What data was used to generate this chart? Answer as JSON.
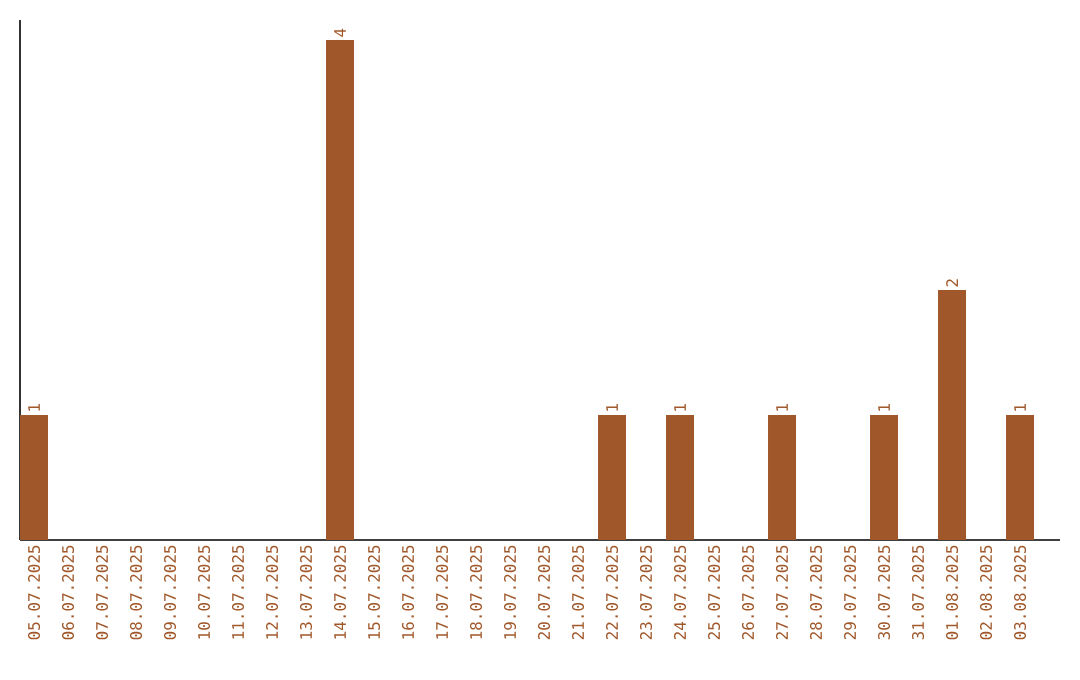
{
  "chart_data": {
    "type": "bar",
    "categories": [
      "05.07.2025",
      "06.07.2025",
      "07.07.2025",
      "08.07.2025",
      "09.07.2025",
      "10.07.2025",
      "11.07.2025",
      "12.07.2025",
      "13.07.2025",
      "14.07.2025",
      "15.07.2025",
      "16.07.2025",
      "17.07.2025",
      "18.07.2025",
      "19.07.2025",
      "20.07.2025",
      "21.07.2025",
      "22.07.2025",
      "23.07.2025",
      "24.07.2025",
      "25.07.2025",
      "26.07.2025",
      "27.07.2025",
      "28.07.2025",
      "29.07.2025",
      "30.07.2025",
      "31.07.2025",
      "01.08.2025",
      "02.08.2025",
      "03.08.2025"
    ],
    "values": [
      1,
      0,
      0,
      0,
      0,
      0,
      0,
      0,
      0,
      4,
      0,
      0,
      0,
      0,
      0,
      0,
      0,
      1,
      0,
      1,
      0,
      0,
      1,
      0,
      0,
      1,
      0,
      2,
      0,
      1
    ],
    "value_labels": [
      "1",
      null,
      null,
      null,
      null,
      null,
      null,
      null,
      null,
      "4",
      null,
      null,
      null,
      null,
      null,
      null,
      null,
      "1",
      null,
      "1",
      null,
      null,
      "1",
      null,
      null,
      "1",
      null,
      "2",
      null,
      "1"
    ],
    "color": "#a0582a",
    "tick_labels": "x",
    "grid": false
  }
}
